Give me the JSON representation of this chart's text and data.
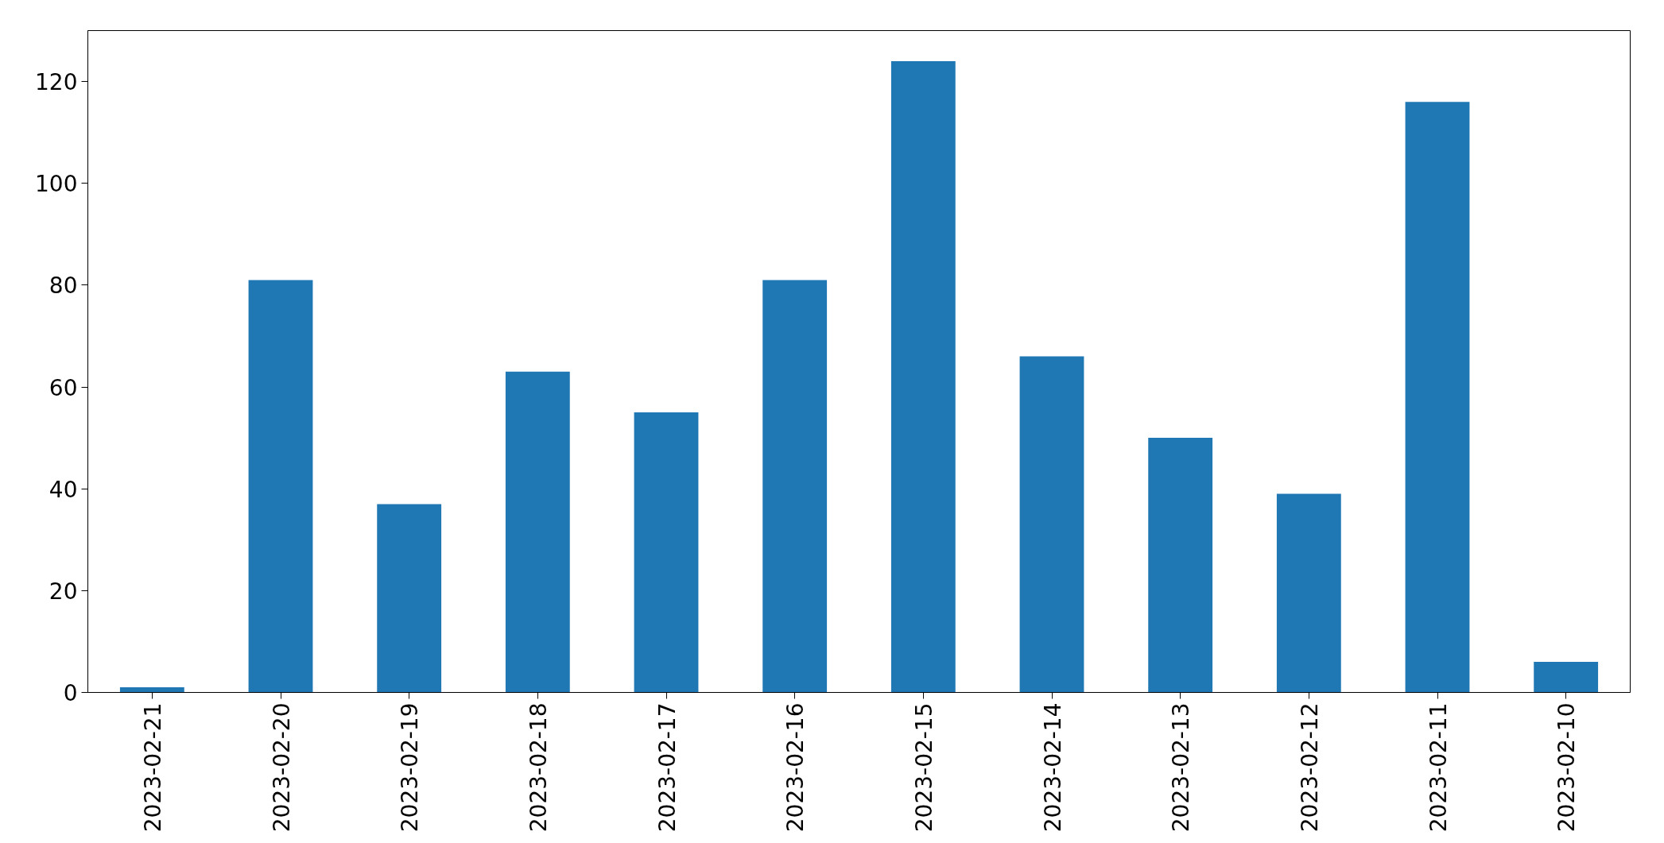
{
  "chart_data": {
    "type": "bar",
    "categories": [
      "2023-02-21",
      "2023-02-20",
      "2023-02-19",
      "2023-02-18",
      "2023-02-17",
      "2023-02-16",
      "2023-02-15",
      "2023-02-14",
      "2023-02-13",
      "2023-02-12",
      "2023-02-11",
      "2023-02-10"
    ],
    "values": [
      1,
      81,
      37,
      63,
      55,
      81,
      124,
      66,
      50,
      39,
      116,
      6
    ],
    "color": "#1f77b4",
    "ylim": [
      0,
      130
    ],
    "yticks": [
      0,
      20,
      40,
      60,
      80,
      100,
      120
    ]
  }
}
